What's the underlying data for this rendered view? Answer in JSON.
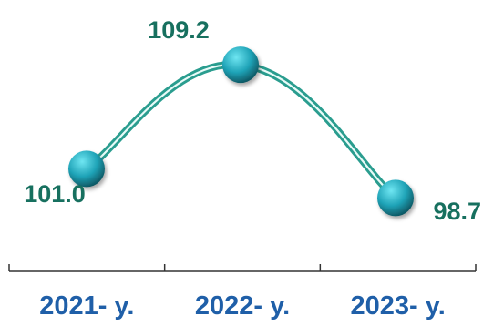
{
  "chart_data": {
    "type": "line",
    "categories": [
      "2021- y.",
      "2022- y.",
      "2023- y."
    ],
    "series": [
      {
        "values": [
          101.0,
          109.2,
          98.7
        ]
      }
    ],
    "data_labels": [
      "101.0",
      "109.2",
      "98.7"
    ],
    "ylim": [
      96,
      110
    ],
    "grid": false,
    "legend": "none",
    "colors": {
      "line": "#2a9d8f",
      "line_highlight": "#e8fbf8",
      "marker_light": "#6fe6f2",
      "marker_mid": "#1fa3b7",
      "marker_dark": "#0c4f5a",
      "label": "#17705f",
      "tick_label": "#1f5fa8",
      "axis": "#333333"
    }
  }
}
